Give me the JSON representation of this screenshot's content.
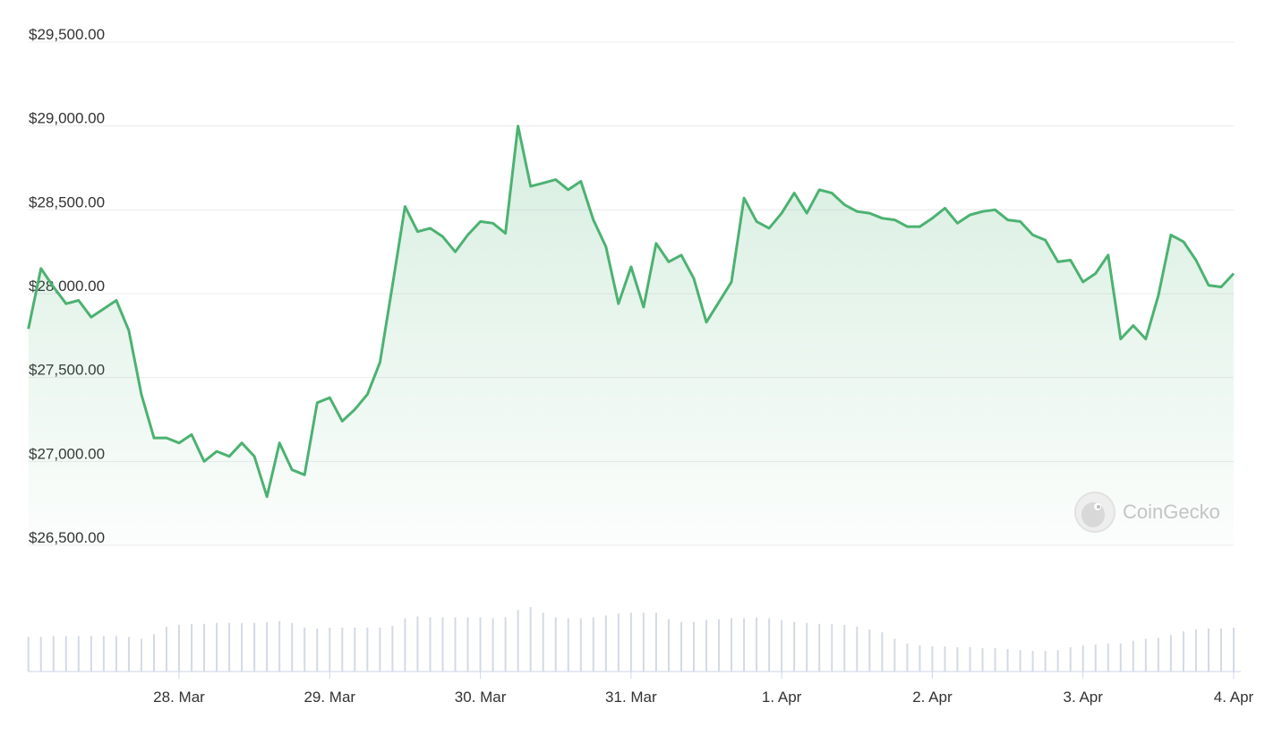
{
  "chart_data": {
    "type": "line",
    "color": "#4cb272",
    "volume_color": "#d3d9e6",
    "grid": true,
    "watermark": "CoinGecko",
    "categories": [
      null,
      null,
      null,
      null,
      null,
      null,
      null,
      null,
      null,
      null,
      null,
      null,
      "28. Mar",
      null,
      null,
      null,
      null,
      null,
      null,
      null,
      null,
      null,
      null,
      null,
      "29. Mar",
      null,
      null,
      null,
      null,
      null,
      null,
      null,
      null,
      null,
      null,
      null,
      "30. Mar",
      null,
      null,
      null,
      null,
      null,
      null,
      null,
      null,
      null,
      null,
      null,
      "31. Mar",
      null,
      null,
      null,
      null,
      null,
      null,
      null,
      null,
      null,
      null,
      null,
      "1. Apr",
      null,
      null,
      null,
      null,
      null,
      null,
      null,
      null,
      null,
      null,
      null,
      "2. Apr",
      null,
      null,
      null,
      null,
      null,
      null,
      null,
      null,
      null,
      null,
      null,
      "3. Apr",
      null,
      null,
      null,
      null,
      null,
      null,
      null,
      null,
      null,
      null,
      null,
      "4. Apr"
    ],
    "values": [
      27790,
      28150,
      28040,
      27940,
      27960,
      27860,
      27910,
      27960,
      27780,
      27400,
      27140,
      27140,
      27110,
      27160,
      27000,
      27060,
      27030,
      27110,
      27030,
      26790,
      27110,
      26950,
      26920,
      27350,
      27380,
      27240,
      27310,
      27400,
      27590,
      28050,
      28520,
      28370,
      28390,
      28340,
      28250,
      28350,
      28430,
      28420,
      28360,
      29000,
      28640,
      28660,
      28680,
      28620,
      28670,
      28440,
      28280,
      27940,
      28160,
      27920,
      28300,
      28190,
      28230,
      28090,
      27830,
      27950,
      28070,
      28570,
      28430,
      28390,
      28480,
      28600,
      28480,
      28620,
      28600,
      28530,
      28490,
      28480,
      28450,
      28440,
      28400,
      28400,
      28450,
      28510,
      28420,
      28470,
      28490,
      28500,
      28440,
      28430,
      28350,
      28320,
      28190,
      28200,
      28070,
      28120,
      28230,
      27730,
      27810,
      27730,
      27990,
      28350,
      28310,
      28200,
      28050,
      28040,
      28120
    ],
    "volume": [
      37,
      37,
      38,
      38,
      38,
      38,
      38,
      38,
      37,
      35,
      40,
      48,
      50,
      51,
      51,
      52,
      52,
      52,
      52,
      53,
      54,
      52,
      47,
      46,
      47,
      47,
      47,
      47,
      47,
      49,
      57,
      59,
      58,
      58,
      58,
      58,
      58,
      57,
      58,
      66,
      69,
      63,
      58,
      57,
      57,
      58,
      60,
      62,
      63,
      63,
      63,
      56,
      53,
      53,
      55,
      56,
      57,
      57,
      58,
      57,
      55,
      53,
      52,
      51,
      51,
      50,
      48,
      45,
      42,
      35,
      30,
      28,
      27,
      27,
      26,
      26,
      25,
      25,
      24,
      23,
      22,
      22,
      23,
      26,
      28,
      29,
      30,
      30,
      33,
      35,
      36,
      39,
      43,
      45,
      46,
      46,
      47
    ],
    "ylim": [
      26500,
      29500
    ],
    "yticks": [
      {
        "value": 26500,
        "label": "$26,500.00"
      },
      {
        "value": 27000,
        "label": "$27,000.00"
      },
      {
        "value": 27500,
        "label": "$27,500.00"
      },
      {
        "value": 28000,
        "label": "$28,000.00"
      },
      {
        "value": 28500,
        "label": "$28,500.00"
      },
      {
        "value": 29000,
        "label": "$29,000.00"
      },
      {
        "value": 29500,
        "label": "$29,500.00"
      }
    ]
  }
}
